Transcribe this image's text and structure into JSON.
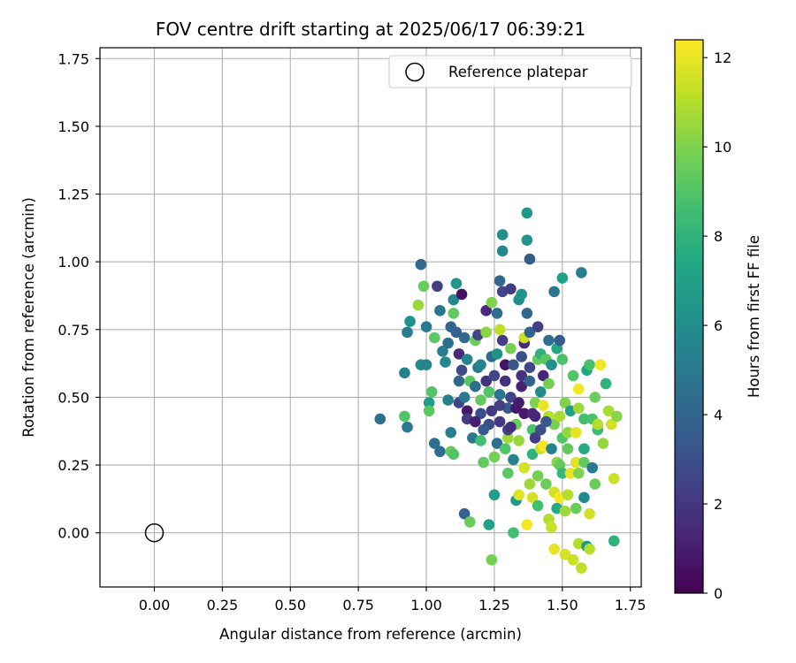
{
  "chart_data": {
    "type": "scatter",
    "title": "FOV centre drift starting at 2025/06/17 06:39:21",
    "xlabel": "Angular distance from reference (arcmin)",
    "ylabel": "Rotation from reference (arcmin)",
    "xlim": [
      -0.2,
      1.79
    ],
    "ylim": [
      -0.2,
      1.79
    ],
    "xticks": [
      0.0,
      0.25,
      0.5,
      0.75,
      1.0,
      1.25,
      1.5,
      1.75
    ],
    "xtick_labels": [
      "0.00",
      "0.25",
      "0.50",
      "0.75",
      "1.00",
      "1.25",
      "1.50",
      "1.75"
    ],
    "yticks": [
      0.0,
      0.25,
      0.5,
      0.75,
      1.0,
      1.25,
      1.5,
      1.75
    ],
    "ytick_labels": [
      "0.00",
      "0.25",
      "0.50",
      "0.75",
      "1.00",
      "1.25",
      "1.50",
      "1.75"
    ],
    "grid": true,
    "legend": {
      "placement": "top-right",
      "entries": [
        "Reference platepar"
      ]
    },
    "colormap": "viridis",
    "colorbar": {
      "label": "Hours from first FF file",
      "range": [
        0,
        12.4
      ],
      "ticks": [
        0,
        2,
        4,
        6,
        8,
        10,
        12
      ],
      "tick_labels": [
        "0",
        "2",
        "4",
        "6",
        "8",
        "10",
        "12"
      ]
    },
    "reference_point": {
      "x": 0.0,
      "y": 0.0,
      "label": "Reference platepar"
    },
    "series": [
      {
        "marker": "filled-circle",
        "points": [
          [
            0.83,
            0.42,
            4.5
          ],
          [
            0.92,
            0.59,
            5.5
          ],
          [
            0.93,
            0.39,
            5.0
          ],
          [
            0.93,
            0.74,
            5.2
          ],
          [
            0.94,
            0.78,
            6.2
          ],
          [
            0.92,
            0.43,
            9.0
          ],
          [
            0.97,
            0.84,
            10.5
          ],
          [
            0.98,
            0.99,
            4.2
          ],
          [
            0.98,
            0.62,
            5.8
          ],
          [
            0.99,
            0.91,
            9.5
          ],
          [
            1.0,
            0.76,
            5.0
          ],
          [
            1.0,
            0.62,
            5.6
          ],
          [
            1.01,
            0.48,
            6.8
          ],
          [
            1.01,
            0.45,
            9.2
          ],
          [
            1.02,
            0.52,
            9.0
          ],
          [
            1.03,
            0.33,
            4.6
          ],
          [
            1.03,
            0.72,
            9.2
          ],
          [
            1.04,
            0.91,
            2.2
          ],
          [
            1.05,
            0.82,
            4.8
          ],
          [
            1.05,
            0.3,
            4.4
          ],
          [
            1.06,
            0.67,
            5.2
          ],
          [
            1.07,
            0.63,
            5.8
          ],
          [
            1.08,
            0.49,
            5.4
          ],
          [
            1.08,
            0.7,
            4.5
          ],
          [
            1.09,
            0.76,
            4.0
          ],
          [
            1.1,
            0.86,
            5.8
          ],
          [
            1.1,
            0.81,
            9.4
          ],
          [
            1.09,
            0.3,
            9.6
          ],
          [
            1.09,
            0.37,
            5.2
          ],
          [
            1.1,
            0.29,
            9.0
          ],
          [
            1.11,
            0.92,
            6.4
          ],
          [
            1.11,
            0.74,
            3.8
          ],
          [
            1.12,
            0.66,
            1.5
          ],
          [
            1.12,
            0.56,
            4.2
          ],
          [
            1.12,
            0.48,
            2.5
          ],
          [
            1.13,
            0.6,
            2.8
          ],
          [
            1.13,
            0.88,
            0.6
          ],
          [
            1.14,
            0.72,
            4.2
          ],
          [
            1.14,
            0.07,
            3.8
          ],
          [
            1.14,
            0.5,
            5.0
          ],
          [
            1.15,
            0.64,
            5.6
          ],
          [
            1.15,
            0.45,
            0.8
          ],
          [
            1.15,
            0.42,
            2.2
          ],
          [
            1.16,
            0.04,
            9.6
          ],
          [
            1.16,
            0.56,
            9.2
          ],
          [
            1.17,
            0.35,
            5.0
          ],
          [
            1.18,
            0.71,
            9.6
          ],
          [
            1.18,
            0.54,
            4.5
          ],
          [
            1.19,
            0.73,
            2.5
          ],
          [
            1.19,
            0.61,
            4.8
          ],
          [
            1.2,
            0.49,
            9.4
          ],
          [
            1.2,
            0.34,
            8.6
          ],
          [
            1.2,
            0.44,
            3.0
          ],
          [
            1.2,
            0.62,
            5.6
          ],
          [
            1.21,
            0.26,
            9.4
          ],
          [
            1.22,
            0.74,
            10.2
          ],
          [
            1.22,
            0.82,
            1.5
          ],
          [
            1.22,
            0.56,
            1.8
          ],
          [
            1.23,
            0.52,
            9.0
          ],
          [
            1.23,
            0.03,
            7.0
          ],
          [
            1.23,
            0.4,
            2.8
          ],
          [
            1.24,
            0.85,
            10.0
          ],
          [
            1.24,
            0.65,
            4.2
          ],
          [
            1.24,
            -0.1,
            9.8
          ],
          [
            1.25,
            0.58,
            2.6
          ],
          [
            1.25,
            0.14,
            6.8
          ],
          [
            1.25,
            0.28,
            9.8
          ],
          [
            1.26,
            0.66,
            6.2
          ],
          [
            1.26,
            0.81,
            4.4
          ],
          [
            1.27,
            0.75,
            11.2
          ],
          [
            1.27,
            0.93,
            4.0
          ],
          [
            1.27,
            0.51,
            4.8
          ],
          [
            1.27,
            0.41,
            2.0
          ],
          [
            1.28,
            1.04,
            5.8
          ],
          [
            1.28,
            1.1,
            6.2
          ],
          [
            1.28,
            0.89,
            2.5
          ],
          [
            1.28,
            0.71,
            2.2
          ],
          [
            1.29,
            0.62,
            0.6
          ],
          [
            1.29,
            0.56,
            1.8
          ],
          [
            1.3,
            0.46,
            3.6
          ],
          [
            1.3,
            0.35,
            10.6
          ],
          [
            1.3,
            0.38,
            2.4
          ],
          [
            1.3,
            0.22,
            9.2
          ],
          [
            1.31,
            0.9,
            2.2
          ],
          [
            1.31,
            0.5,
            2.5
          ],
          [
            1.31,
            0.68,
            9.8
          ],
          [
            1.32,
            0.27,
            5.4
          ],
          [
            1.32,
            0.62,
            3.4
          ],
          [
            1.32,
            0.0,
            8.6
          ],
          [
            1.33,
            0.12,
            6.6
          ],
          [
            1.33,
            0.4,
            9.6
          ],
          [
            1.33,
            0.46,
            0.8
          ],
          [
            1.34,
            0.14,
            11.8
          ],
          [
            1.34,
            0.34,
            10.5
          ],
          [
            1.34,
            0.86,
            6.0
          ],
          [
            1.35,
            0.88,
            6.4
          ],
          [
            1.35,
            0.54,
            1.2
          ],
          [
            1.35,
            0.58,
            1.8
          ],
          [
            1.35,
            0.65,
            3.0
          ],
          [
            1.36,
            0.7,
            1.5
          ],
          [
            1.36,
            0.44,
            0.8
          ],
          [
            1.36,
            0.72,
            11.4
          ],
          [
            1.36,
            0.24,
            11.6
          ],
          [
            1.37,
            0.81,
            4.2
          ],
          [
            1.37,
            1.08,
            6.4
          ],
          [
            1.37,
            1.18,
            6.6
          ],
          [
            1.37,
            0.03,
            12.2
          ],
          [
            1.38,
            1.01,
            3.6
          ],
          [
            1.38,
            0.61,
            2.6
          ],
          [
            1.38,
            0.74,
            3.8
          ],
          [
            1.38,
            0.56,
            4.0
          ],
          [
            1.38,
            0.18,
            10.6
          ],
          [
            1.39,
            0.38,
            8.8
          ],
          [
            1.39,
            0.29,
            8.0
          ],
          [
            1.39,
            0.13,
            11.6
          ],
          [
            1.4,
            0.43,
            1.2
          ],
          [
            1.4,
            0.35,
            2.2
          ],
          [
            1.4,
            0.48,
            10.0
          ],
          [
            1.41,
            0.76,
            2.4
          ],
          [
            1.41,
            0.64,
            9.4
          ],
          [
            1.41,
            0.21,
            9.8
          ],
          [
            1.41,
            0.1,
            8.6
          ],
          [
            1.42,
            0.66,
            8.0
          ],
          [
            1.42,
            0.52,
            6.0
          ],
          [
            1.42,
            0.38,
            3.0
          ],
          [
            1.42,
            0.31,
            11.4
          ],
          [
            1.43,
            0.58,
            1.4
          ],
          [
            1.43,
            0.47,
            12.0
          ],
          [
            1.43,
            0.32,
            12.2
          ],
          [
            1.44,
            0.64,
            9.2
          ],
          [
            1.44,
            0.18,
            9.6
          ],
          [
            1.45,
            0.71,
            4.6
          ],
          [
            1.45,
            0.55,
            9.8
          ],
          [
            1.45,
            0.43,
            11.0
          ],
          [
            1.45,
            0.05,
            11.0
          ],
          [
            1.46,
            0.62,
            6.2
          ],
          [
            1.46,
            0.31,
            5.4
          ],
          [
            1.46,
            0.02,
            11.4
          ],
          [
            1.47,
            0.89,
            4.8
          ],
          [
            1.47,
            0.4,
            9.8
          ],
          [
            1.47,
            0.15,
            11.6
          ],
          [
            1.47,
            -0.06,
            12.0
          ],
          [
            1.48,
            0.68,
            7.4
          ],
          [
            1.48,
            0.26,
            10.2
          ],
          [
            1.48,
            0.09,
            7.6
          ],
          [
            1.49,
            0.43,
            10.8
          ],
          [
            1.49,
            0.25,
            9.4
          ],
          [
            1.49,
            0.13,
            12.2
          ],
          [
            1.49,
            0.71,
            3.6
          ],
          [
            1.5,
            0.64,
            8.8
          ],
          [
            1.5,
            0.35,
            9.0
          ],
          [
            1.5,
            0.22,
            8.2
          ],
          [
            1.5,
            0.94,
            7.0
          ],
          [
            1.51,
            0.48,
            10.0
          ],
          [
            1.51,
            0.08,
            10.6
          ],
          [
            1.51,
            -0.08,
            11.6
          ],
          [
            1.52,
            0.37,
            10.4
          ],
          [
            1.52,
            0.14,
            11.0
          ],
          [
            1.52,
            0.31,
            9.4
          ],
          [
            1.53,
            0.45,
            7.0
          ],
          [
            1.53,
            0.22,
            12.0
          ],
          [
            1.54,
            0.58,
            9.0
          ],
          [
            1.54,
            -0.1,
            11.4
          ],
          [
            1.55,
            0.26,
            11.8
          ],
          [
            1.55,
            0.09,
            9.6
          ],
          [
            1.55,
            0.37,
            12.0
          ],
          [
            1.56,
            0.53,
            12.2
          ],
          [
            1.56,
            0.46,
            10.6
          ],
          [
            1.56,
            0.22,
            10.0
          ],
          [
            1.56,
            -0.04,
            11.0
          ],
          [
            1.57,
            0.96,
            5.2
          ],
          [
            1.57,
            -0.13,
            11.2
          ],
          [
            1.58,
            0.42,
            8.6
          ],
          [
            1.58,
            0.26,
            9.4
          ],
          [
            1.58,
            0.13,
            5.8
          ],
          [
            1.58,
            0.31,
            7.6
          ],
          [
            1.59,
            0.6,
            7.4
          ],
          [
            1.59,
            -0.05,
            6.4
          ],
          [
            1.6,
            0.62,
            8.8
          ],
          [
            1.6,
            -0.06,
            11.0
          ],
          [
            1.6,
            0.07,
            11.6
          ],
          [
            1.61,
            0.24,
            5.0
          ],
          [
            1.61,
            0.42,
            8.8
          ],
          [
            1.62,
            0.18,
            9.6
          ],
          [
            1.62,
            0.5,
            9.6
          ],
          [
            1.63,
            0.38,
            8.4
          ],
          [
            1.63,
            0.4,
            11.0
          ],
          [
            1.64,
            0.62,
            12.2
          ],
          [
            1.65,
            0.33,
            10.4
          ],
          [
            1.66,
            0.55,
            8.0
          ],
          [
            1.67,
            0.45,
            10.8
          ],
          [
            1.68,
            0.4,
            11.6
          ],
          [
            1.69,
            0.2,
            11.4
          ],
          [
            1.69,
            -0.03,
            8.0
          ],
          [
            1.7,
            0.43,
            10.2
          ],
          [
            1.24,
            0.45,
            2.0
          ],
          [
            1.26,
            0.33,
            4.5
          ],
          [
            1.21,
            0.38,
            3.5
          ],
          [
            1.18,
            0.41,
            1.0
          ],
          [
            1.29,
            0.31,
            9.0
          ],
          [
            1.34,
            0.48,
            1.0
          ],
          [
            1.39,
            0.44,
            1.4
          ],
          [
            1.44,
            0.41,
            3.4
          ],
          [
            1.31,
            0.39,
            1.6
          ],
          [
            1.27,
            0.47,
            2.4
          ]
        ]
      }
    ]
  }
}
